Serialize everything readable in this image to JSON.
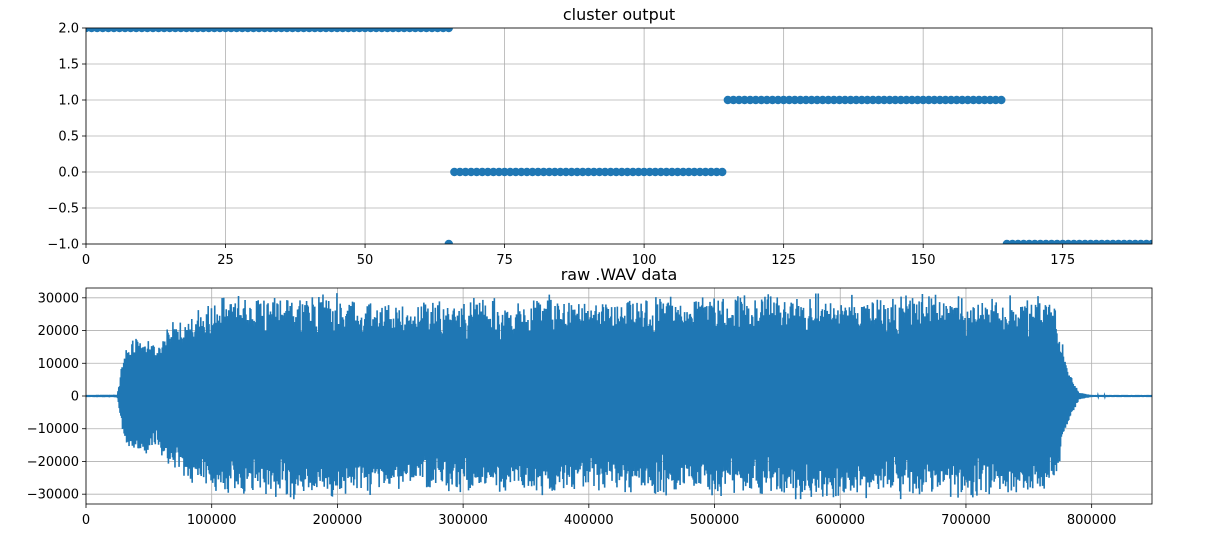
{
  "colors": {
    "series": "#1f77b4",
    "grid": "#b0b0b0"
  },
  "chart_data": [
    {
      "type": "scatter",
      "title": "cluster output",
      "xlabel": "",
      "ylabel": "",
      "xlim": [
        0,
        191
      ],
      "ylim": [
        -1.0,
        2.0
      ],
      "xticks": [
        0,
        25,
        50,
        75,
        100,
        125,
        150,
        175
      ],
      "yticks": [
        2.0,
        1.5,
        1.0,
        0.5,
        0.0,
        -0.5,
        -1.0
      ],
      "xtick_labels": [
        "0",
        "25",
        "50",
        "75",
        "100",
        "125",
        "150",
        "175"
      ],
      "ytick_labels": [
        "2.0",
        "1.5",
        "1.0",
        "0.5",
        "0.0",
        "−0.5",
        "−1.0"
      ],
      "grid": true,
      "segments": [
        {
          "x_start": 0,
          "x_end": 65,
          "y": 2
        },
        {
          "x_start": 65,
          "x_end": 65,
          "y": -1
        },
        {
          "x_start": 66,
          "x_end": 114,
          "y": 0
        },
        {
          "x_start": 115,
          "x_end": 164,
          "y": 1
        },
        {
          "x_start": 165,
          "x_end": 191,
          "y": -1
        }
      ]
    },
    {
      "type": "line",
      "title": "raw .WAV data",
      "xlabel": "",
      "ylabel": "",
      "xlim": [
        0,
        848000
      ],
      "ylim": [
        -33000,
        33000
      ],
      "xticks": [
        0,
        100000,
        200000,
        300000,
        400000,
        500000,
        600000,
        700000,
        800000
      ],
      "yticks": [
        30000,
        20000,
        10000,
        0,
        -10000,
        -20000,
        -30000
      ],
      "xtick_labels": [
        "0",
        "100000",
        "200000",
        "300000",
        "400000",
        "500000",
        "600000",
        "700000",
        "800000"
      ],
      "ytick_labels": [
        "30000",
        "20000",
        "10000",
        "0",
        "−10000",
        "−20000",
        "−30000"
      ],
      "grid": true,
      "envelope": {
        "x": [
          0,
          25000,
          30000,
          40000,
          55000,
          70000,
          100000,
          130000,
          200000,
          250000,
          300000,
          350000,
          370000,
          400000,
          450000,
          500000,
          600000,
          700000,
          770000,
          780000,
          790000,
          800000,
          848000
        ],
        "amplitude": [
          300,
          400,
          14000,
          20000,
          16000,
          24000,
          30000,
          32000,
          32000,
          29000,
          31000,
          30000,
          32000,
          29000,
          31000,
          32000,
          32000,
          32000,
          31000,
          10000,
          1000,
          300,
          300
        ]
      }
    }
  ]
}
